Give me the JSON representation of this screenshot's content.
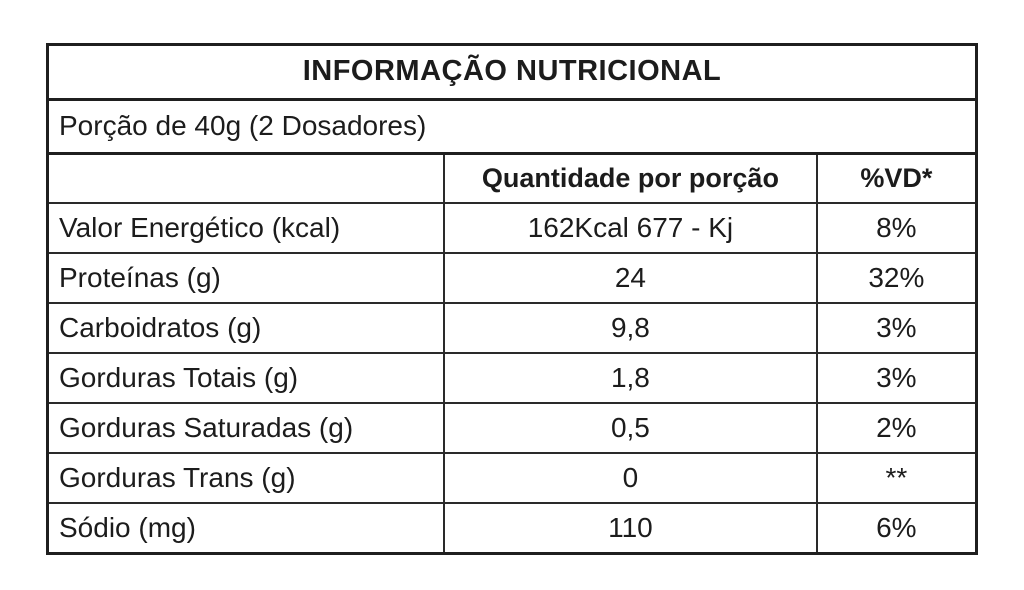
{
  "page": {
    "background": "#ffffff",
    "border_color": "#1f1f1f",
    "text_color": "#1c1c1c"
  },
  "table": {
    "title": "INFORMAÇÃO NUTRICIONAL",
    "serving": "Porção de 40g (2 Dosadores)",
    "columns": {
      "quantity": "Quantidade por porção",
      "dv": "%VD*"
    },
    "rows": [
      {
        "label": "Valor Energético (kcal)",
        "quantity": "162Kcal 677 - Kj",
        "dv": "8%"
      },
      {
        "label": "Proteínas (g)",
        "quantity": "24",
        "dv": "32%"
      },
      {
        "label": "Carboidratos (g)",
        "quantity": "9,8",
        "dv": "3%"
      },
      {
        "label": "Gorduras Totais (g)",
        "quantity": "1,8",
        "dv": "3%"
      },
      {
        "label": "Gorduras Saturadas (g)",
        "quantity": "0,5",
        "dv": "2%"
      },
      {
        "label": "Gorduras Trans (g)",
        "quantity": "0",
        "dv": "**"
      },
      {
        "label": "Sódio (mg)",
        "quantity": "110",
        "dv": "6%"
      }
    ]
  }
}
